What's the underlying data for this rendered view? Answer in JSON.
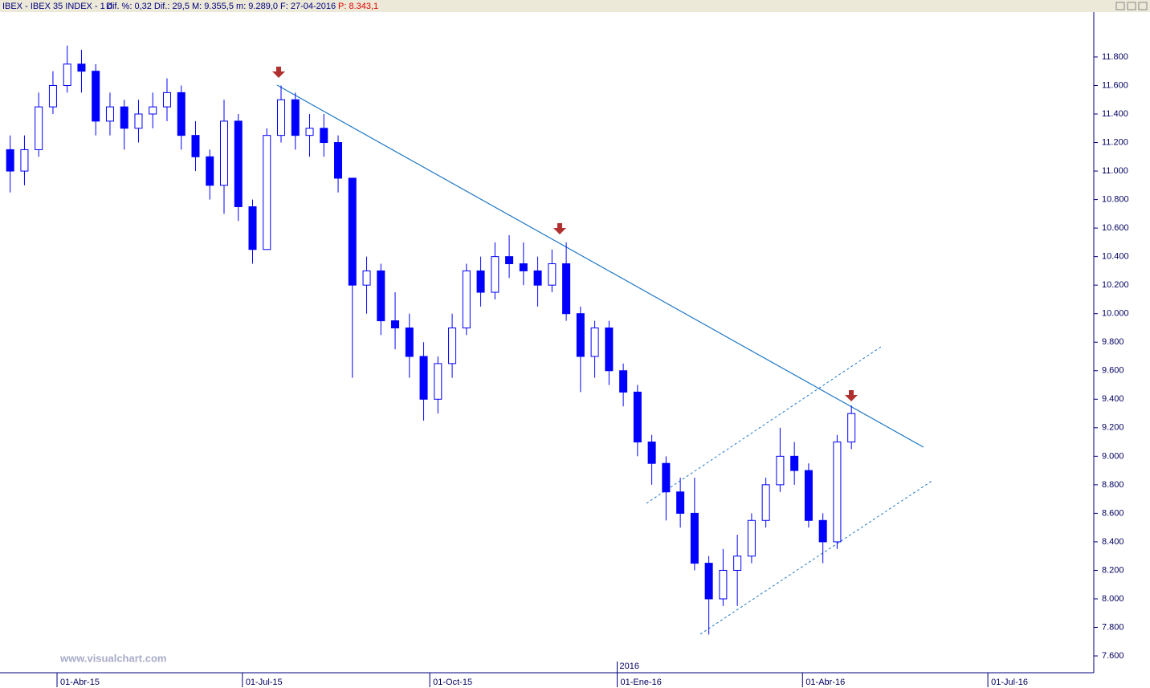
{
  "chart_data": {
    "type": "candlestick",
    "title": "IBEX - IBEX 35 INDEX - 1 d",
    "subtitle": "Dif. %: 0,32  Dif.: 29,5  M: 9.355,5  m: 9.289,0  F: 27-04-2016",
    "price_label": "P: 8.343,1",
    "watermark": "www.visualchart.com",
    "year_label": "2016",
    "x": [
      "2015-03-09",
      "2015-03-16",
      "2015-03-23",
      "2015-03-30",
      "2015-04-06",
      "2015-04-13",
      "2015-04-20",
      "2015-04-27",
      "2015-05-04",
      "2015-05-11",
      "2015-05-18",
      "2015-05-25",
      "2015-06-01",
      "2015-06-08",
      "2015-06-15",
      "2015-06-22",
      "2015-06-29",
      "2015-07-06",
      "2015-07-13",
      "2015-07-20",
      "2015-07-27",
      "2015-08-03",
      "2015-08-10",
      "2015-08-17",
      "2015-08-24",
      "2015-08-31",
      "2015-09-07",
      "2015-09-14",
      "2015-09-21",
      "2015-09-28",
      "2015-10-05",
      "2015-10-12",
      "2015-10-19",
      "2015-10-26",
      "2015-11-02",
      "2015-11-09",
      "2015-11-16",
      "2015-11-23",
      "2015-11-30",
      "2015-12-07",
      "2015-12-14",
      "2015-12-21",
      "2015-12-28",
      "2016-01-04",
      "2016-01-11",
      "2016-01-18",
      "2016-01-25",
      "2016-02-01",
      "2016-02-08",
      "2016-02-15",
      "2016-02-22",
      "2016-02-29",
      "2016-03-07",
      "2016-03-14",
      "2016-03-21",
      "2016-03-28",
      "2016-04-04",
      "2016-04-11",
      "2016-04-18",
      "2016-04-25"
    ],
    "series": [
      {
        "color": "#0000ff",
        "open": [
          11150,
          11000,
          11150,
          11450,
          11600,
          11750,
          11700,
          11350,
          11450,
          11300,
          11400,
          11450,
          11550,
          11250,
          11100,
          10900,
          11350,
          10750,
          10450,
          11250,
          11500,
          11250,
          11300,
          11200,
          10950,
          10200,
          10300,
          9950,
          9900,
          9700,
          9400,
          9650,
          9900,
          10300,
          10150,
          10400,
          10350,
          10300,
          10200,
          10350,
          10000,
          9700,
          9900,
          9600,
          9450,
          9100,
          8950,
          8750,
          8600,
          8250,
          8000,
          8200,
          8300,
          8550,
          8800,
          9000,
          8900,
          8550,
          8400,
          9100
        ],
        "high": [
          11250,
          11250,
          11550,
          11700,
          11880,
          11850,
          11750,
          11550,
          11500,
          11500,
          11550,
          11650,
          11600,
          11350,
          11150,
          11500,
          11400,
          10800,
          11300,
          11600,
          11550,
          11400,
          11400,
          11250,
          10950,
          10400,
          10350,
          10150,
          10000,
          9800,
          9700,
          10000,
          10350,
          10400,
          10500,
          10550,
          10500,
          10400,
          10450,
          10500,
          10050,
          9950,
          9950,
          9650,
          9500,
          9150,
          9000,
          8850,
          8850,
          8300,
          8350,
          8450,
          8600,
          8850,
          9200,
          9100,
          8950,
          8600,
          9150,
          9356
        ],
        "low": [
          10850,
          10900,
          11100,
          11400,
          11550,
          11550,
          11250,
          11250,
          11150,
          11200,
          11300,
          11350,
          11150,
          11000,
          10800,
          10700,
          10650,
          10350,
          10450,
          11200,
          11150,
          11100,
          11100,
          10850,
          9550,
          10000,
          9850,
          9750,
          9550,
          9250,
          9300,
          9550,
          9850,
          10050,
          10100,
          10250,
          10200,
          10050,
          10150,
          9950,
          9450,
          9550,
          9500,
          9350,
          9000,
          8800,
          8550,
          8500,
          8200,
          7750,
          7950,
          7950,
          8250,
          8500,
          8750,
          8800,
          8500,
          8250,
          8350,
          9050
        ],
        "close": [
          11000,
          11150,
          11450,
          11600,
          11750,
          11700,
          11350,
          11450,
          11300,
          11400,
          11450,
          11550,
          11250,
          11100,
          10900,
          11350,
          10750,
          10450,
          11250,
          11500,
          11250,
          11300,
          11200,
          10950,
          10200,
          10300,
          9950,
          9900,
          9700,
          9400,
          9650,
          9900,
          10300,
          10150,
          10400,
          10350,
          10300,
          10200,
          10350,
          10000,
          9700,
          9900,
          9600,
          9450,
          9100,
          8950,
          8750,
          8600,
          8250,
          8000,
          8200,
          8300,
          8550,
          8800,
          9000,
          8900,
          8550,
          8400,
          9100,
          9300
        ]
      }
    ],
    "xlim": [
      "2015-03-04",
      "2016-08-22"
    ],
    "xticks": [
      {
        "value": "2015-04-01",
        "label": "01-Abr-15"
      },
      {
        "value": "2015-07-01",
        "label": "01-Jul-15"
      },
      {
        "value": "2015-10-01",
        "label": "01-Oct-15"
      },
      {
        "value": "2016-01-01",
        "label": "01-Ene-16"
      },
      {
        "value": "2016-04-01",
        "label": "01-Abr-16"
      },
      {
        "value": "2016-07-01",
        "label": "01-Jul-16"
      }
    ],
    "ylim": [
      7482,
      12115
    ],
    "yticks": [
      {
        "value": 7600,
        "label": "7.600"
      },
      {
        "value": 7800,
        "label": "7.800"
      },
      {
        "value": 8000,
        "label": "8.000"
      },
      {
        "value": 8200,
        "label": "8.200"
      },
      {
        "value": 8400,
        "label": "8.400"
      },
      {
        "value": 8600,
        "label": "8.600"
      },
      {
        "value": 8800,
        "label": "8.800"
      },
      {
        "value": 9000,
        "label": "9.000"
      },
      {
        "value": 9200,
        "label": "9.200"
      },
      {
        "value": 9400,
        "label": "9.400"
      },
      {
        "value": 9600,
        "label": "9.600"
      },
      {
        "value": 9800,
        "label": "9.800"
      },
      {
        "value": 10000,
        "label": "10.000"
      },
      {
        "value": 10200,
        "label": "10.200"
      },
      {
        "value": 10400,
        "label": "10.400"
      },
      {
        "value": 10600,
        "label": "10.600"
      },
      {
        "value": 10800,
        "label": "10.800"
      },
      {
        "value": 11000,
        "label": "11.000"
      },
      {
        "value": 11200,
        "label": "11.200"
      },
      {
        "value": 11400,
        "label": "11.400"
      },
      {
        "value": 11600,
        "label": "11.600"
      },
      {
        "value": 11800,
        "label": "11.800"
      }
    ],
    "grid": false
  }
}
